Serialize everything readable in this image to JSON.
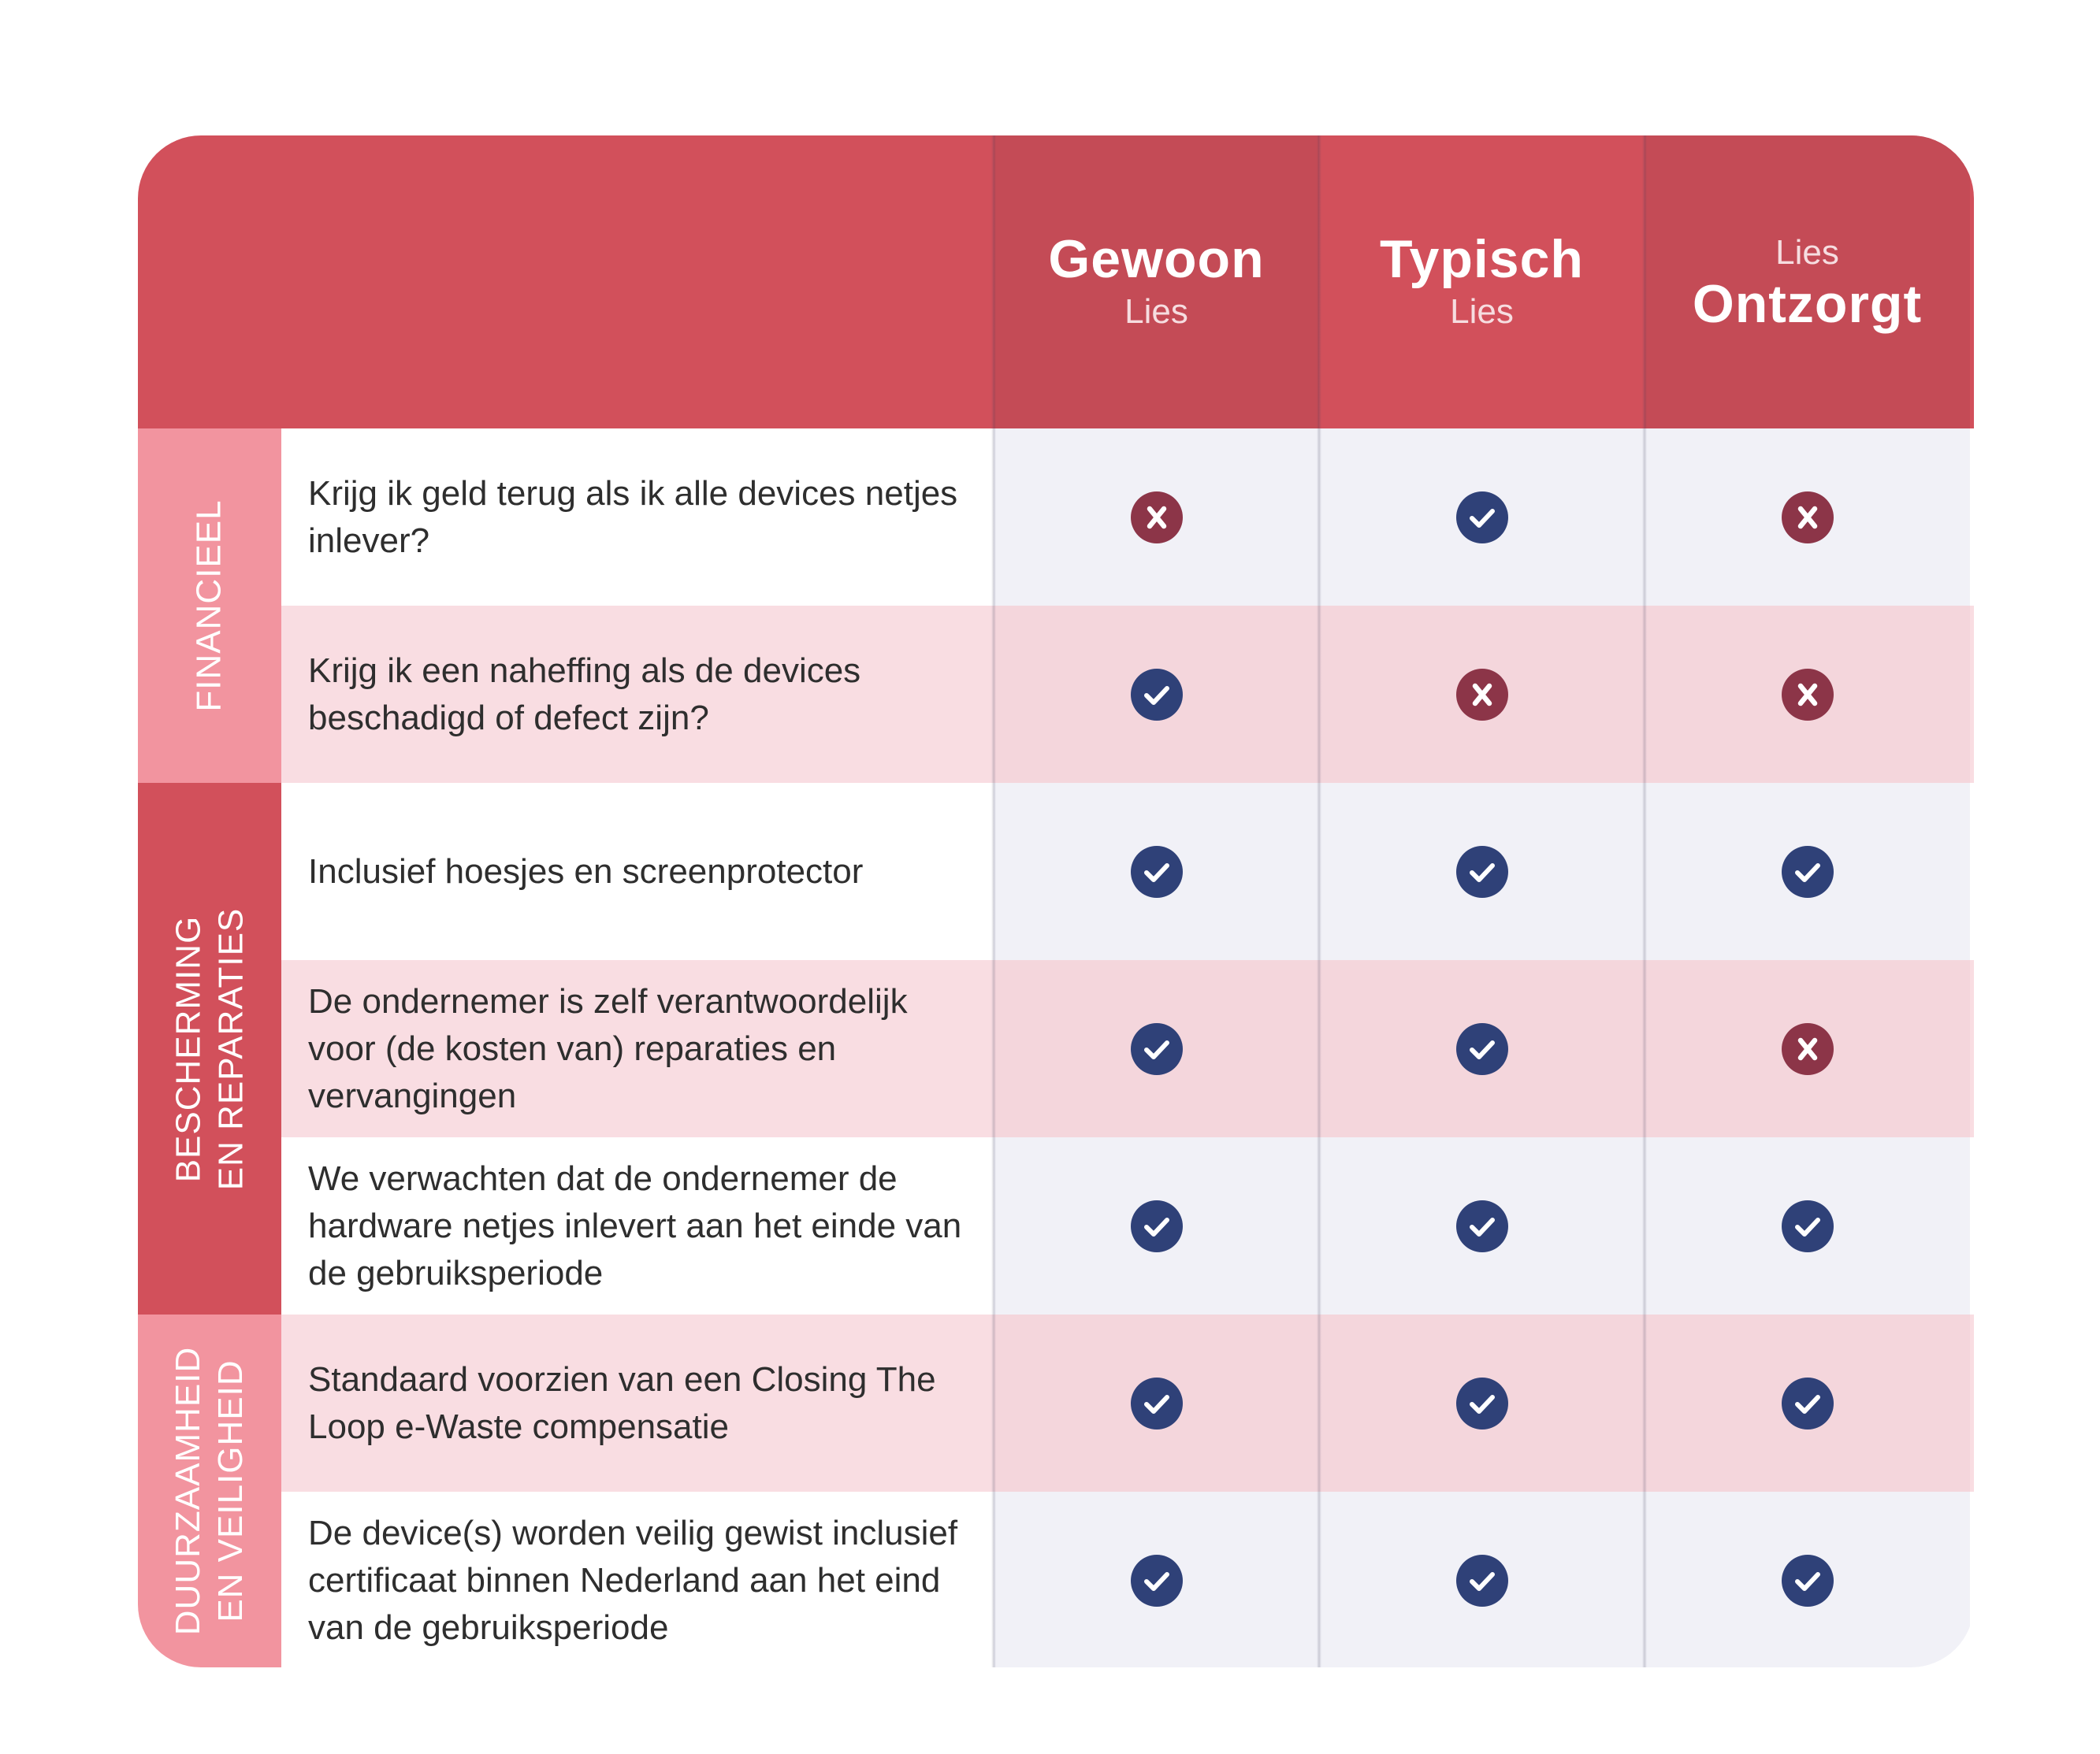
{
  "columns": [
    {
      "title": "Gewoon",
      "subtitle": "Lies"
    },
    {
      "title": "Typisch",
      "subtitle": "Lies"
    },
    {
      "title": "Ontzorgt",
      "subtitle": "Lies"
    }
  ],
  "categories": [
    "FINANCIEEL",
    "BESCHERMING\nEN REPARATIES",
    "DUURZAAMHEID\nEN VEILIGHEID"
  ],
  "rows": [
    {
      "question": "Krijg ik geld terug als ik alle devices netjes inlever?",
      "values": [
        "cross",
        "check",
        "cross"
      ]
    },
    {
      "question": "Krijg ik een naheffing als de devices beschadigd of defect zijn?",
      "values": [
        "check",
        "cross",
        "cross"
      ]
    },
    {
      "question": "Inclusief hoesjes en screenprotector",
      "values": [
        "check",
        "check",
        "check"
      ]
    },
    {
      "question": "De ondernemer is zelf verantwoordelijk voor (de kosten van) reparaties en vervangingen",
      "values": [
        "check",
        "check",
        "cross"
      ]
    },
    {
      "question": "We verwachten dat de ondernemer de hardware netjes inlevert aan het einde van de gebruiksperiode",
      "values": [
        "check",
        "check",
        "check"
      ]
    },
    {
      "question": "Standaard voorzien van een Closing The Loop e-Waste compensatie",
      "values": [
        "check",
        "check",
        "check"
      ]
    },
    {
      "question": "De device(s) worden veilig gewist inclusief certificaat binnen Nederland aan het eind van de gebruiksperiode",
      "values": [
        "check",
        "check",
        "check"
      ]
    }
  ],
  "icons": {
    "check": "check-circle-icon",
    "cross": "x-circle-icon"
  },
  "colors": {
    "header": "#d2505b",
    "header_dark": "#c44b56",
    "check": "#2f4178",
    "cross": "#8c3548",
    "category_light": "#f2949f",
    "category_dark": "#d2505b"
  }
}
